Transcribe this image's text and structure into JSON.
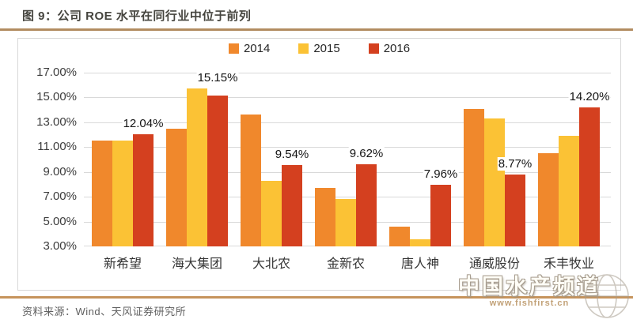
{
  "figure": {
    "title": "图 9：公司 ROE 水平在同行业中位于前列",
    "source": "资料来源：Wind、天风证券研究所"
  },
  "watermark": {
    "name": "中国水产频道",
    "url": "www.fishfirst.cn",
    "globe_icon": "globe-icon"
  },
  "colors": {
    "series_2014": "#F0882C",
    "series_2015": "#FBC235",
    "series_2016": "#D4401F",
    "accent_rule_top": "#B28C60",
    "accent_rule_bottom": "#C6945C",
    "grid": "#D9D9D9"
  },
  "chart_data": {
    "type": "bar",
    "title": "图 9：公司 ROE 水平在同行业中位于前列",
    "categories": [
      "新希望",
      "海大集团",
      "大北农",
      "金新农",
      "唐人神",
      "通威股份",
      "禾丰牧业"
    ],
    "series": [
      {
        "name": "2014",
        "color_key": "series_2014",
        "values": [
          11.5,
          12.5,
          13.6,
          7.7,
          4.6,
          14.1,
          10.5
        ]
      },
      {
        "name": "2015",
        "color_key": "series_2015",
        "values": [
          11.5,
          15.7,
          8.3,
          6.8,
          3.6,
          13.3,
          11.9
        ]
      },
      {
        "name": "2016",
        "color_key": "series_2016",
        "values": [
          12.04,
          15.15,
          9.54,
          9.62,
          7.96,
          8.77,
          14.2
        ]
      }
    ],
    "data_labels": [
      "12.04%",
      "15.15%",
      "9.54%",
      "9.62%",
      "7.96%",
      "8.77%",
      "14.20%"
    ],
    "data_label_series": "2016",
    "ylim": [
      3,
      17
    ],
    "ytick_step": 2,
    "yticks": [
      "17.00%",
      "15.00%",
      "13.00%",
      "11.00%",
      "9.00%",
      "7.00%",
      "5.00%",
      "3.00%"
    ],
    "xlabel": "",
    "ylabel": "",
    "grid": true,
    "legend_position": "top-center"
  }
}
